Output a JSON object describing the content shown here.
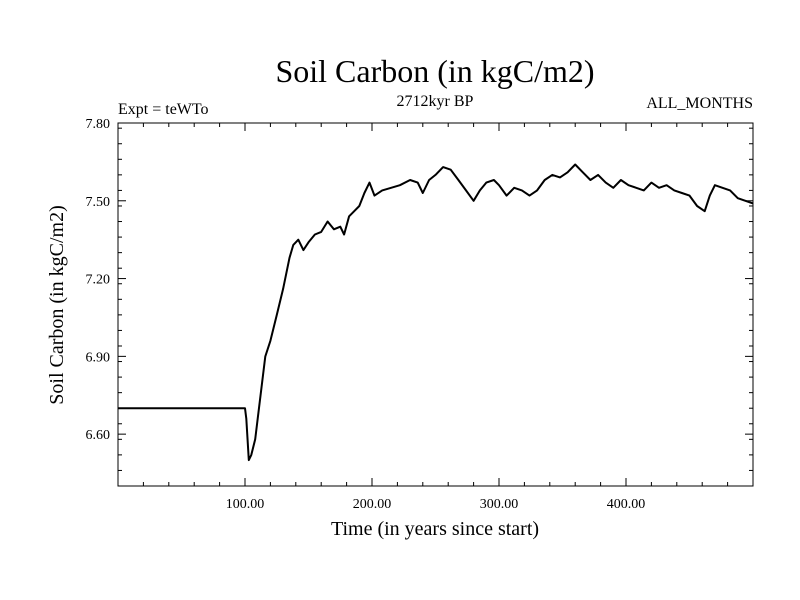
{
  "chart_data": {
    "type": "line",
    "title": "Soil Carbon (in kgC/m2)",
    "subtitle_left": "Expt = teWTo",
    "subtitle_center": "2712kyr BP",
    "subtitle_right": "ALL_MONTHS",
    "xlabel": "Time (in years since start)",
    "ylabel": "Soil Carbon (in kgC/m2)",
    "xlim": [
      0,
      500
    ],
    "ylim": [
      6.4,
      7.8
    ],
    "x_ticks": [
      100,
      200,
      300,
      400
    ],
    "x_tick_labels": [
      "100.00",
      "200.00",
      "300.00",
      "400.00"
    ],
    "y_ticks": [
      6.6,
      6.9,
      7.2,
      7.5,
      7.8
    ],
    "y_tick_labels": [
      "6.60",
      "6.90",
      "7.20",
      "7.50",
      "7.80"
    ],
    "x_minor_step": 20,
    "y_minor_step": 0.06,
    "grid": false,
    "series": [
      {
        "name": "Soil Carbon",
        "color": "#000000",
        "points": [
          [
            0,
            6.7
          ],
          [
            100,
            6.7
          ],
          [
            101,
            6.66
          ],
          [
            103,
            6.5
          ],
          [
            105,
            6.52
          ],
          [
            108,
            6.58
          ],
          [
            110,
            6.66
          ],
          [
            113,
            6.78
          ],
          [
            116,
            6.9
          ],
          [
            120,
            6.96
          ],
          [
            125,
            7.06
          ],
          [
            130,
            7.16
          ],
          [
            135,
            7.28
          ],
          [
            138,
            7.33
          ],
          [
            142,
            7.35
          ],
          [
            146,
            7.31
          ],
          [
            150,
            7.34
          ],
          [
            155,
            7.37
          ],
          [
            160,
            7.38
          ],
          [
            165,
            7.42
          ],
          [
            170,
            7.39
          ],
          [
            175,
            7.4
          ],
          [
            178,
            7.37
          ],
          [
            182,
            7.44
          ],
          [
            186,
            7.46
          ],
          [
            190,
            7.48
          ],
          [
            194,
            7.53
          ],
          [
            198,
            7.57
          ],
          [
            202,
            7.52
          ],
          [
            208,
            7.54
          ],
          [
            215,
            7.55
          ],
          [
            222,
            7.56
          ],
          [
            230,
            7.58
          ],
          [
            236,
            7.57
          ],
          [
            240,
            7.53
          ],
          [
            245,
            7.58
          ],
          [
            250,
            7.6
          ],
          [
            256,
            7.63
          ],
          [
            262,
            7.62
          ],
          [
            268,
            7.58
          ],
          [
            274,
            7.54
          ],
          [
            280,
            7.5
          ],
          [
            285,
            7.54
          ],
          [
            290,
            7.57
          ],
          [
            296,
            7.58
          ],
          [
            300,
            7.56
          ],
          [
            306,
            7.52
          ],
          [
            312,
            7.55
          ],
          [
            318,
            7.54
          ],
          [
            324,
            7.52
          ],
          [
            330,
            7.54
          ],
          [
            336,
            7.58
          ],
          [
            342,
            7.6
          ],
          [
            348,
            7.59
          ],
          [
            354,
            7.61
          ],
          [
            360,
            7.64
          ],
          [
            366,
            7.61
          ],
          [
            372,
            7.58
          ],
          [
            378,
            7.6
          ],
          [
            384,
            7.57
          ],
          [
            390,
            7.55
          ],
          [
            396,
            7.58
          ],
          [
            402,
            7.56
          ],
          [
            408,
            7.55
          ],
          [
            414,
            7.54
          ],
          [
            420,
            7.57
          ],
          [
            426,
            7.55
          ],
          [
            432,
            7.56
          ],
          [
            438,
            7.54
          ],
          [
            444,
            7.53
          ],
          [
            450,
            7.52
          ],
          [
            456,
            7.48
          ],
          [
            462,
            7.46
          ],
          [
            466,
            7.52
          ],
          [
            470,
            7.56
          ],
          [
            476,
            7.55
          ],
          [
            482,
            7.54
          ],
          [
            488,
            7.51
          ],
          [
            494,
            7.5
          ],
          [
            500,
            7.49
          ]
        ]
      }
    ]
  }
}
